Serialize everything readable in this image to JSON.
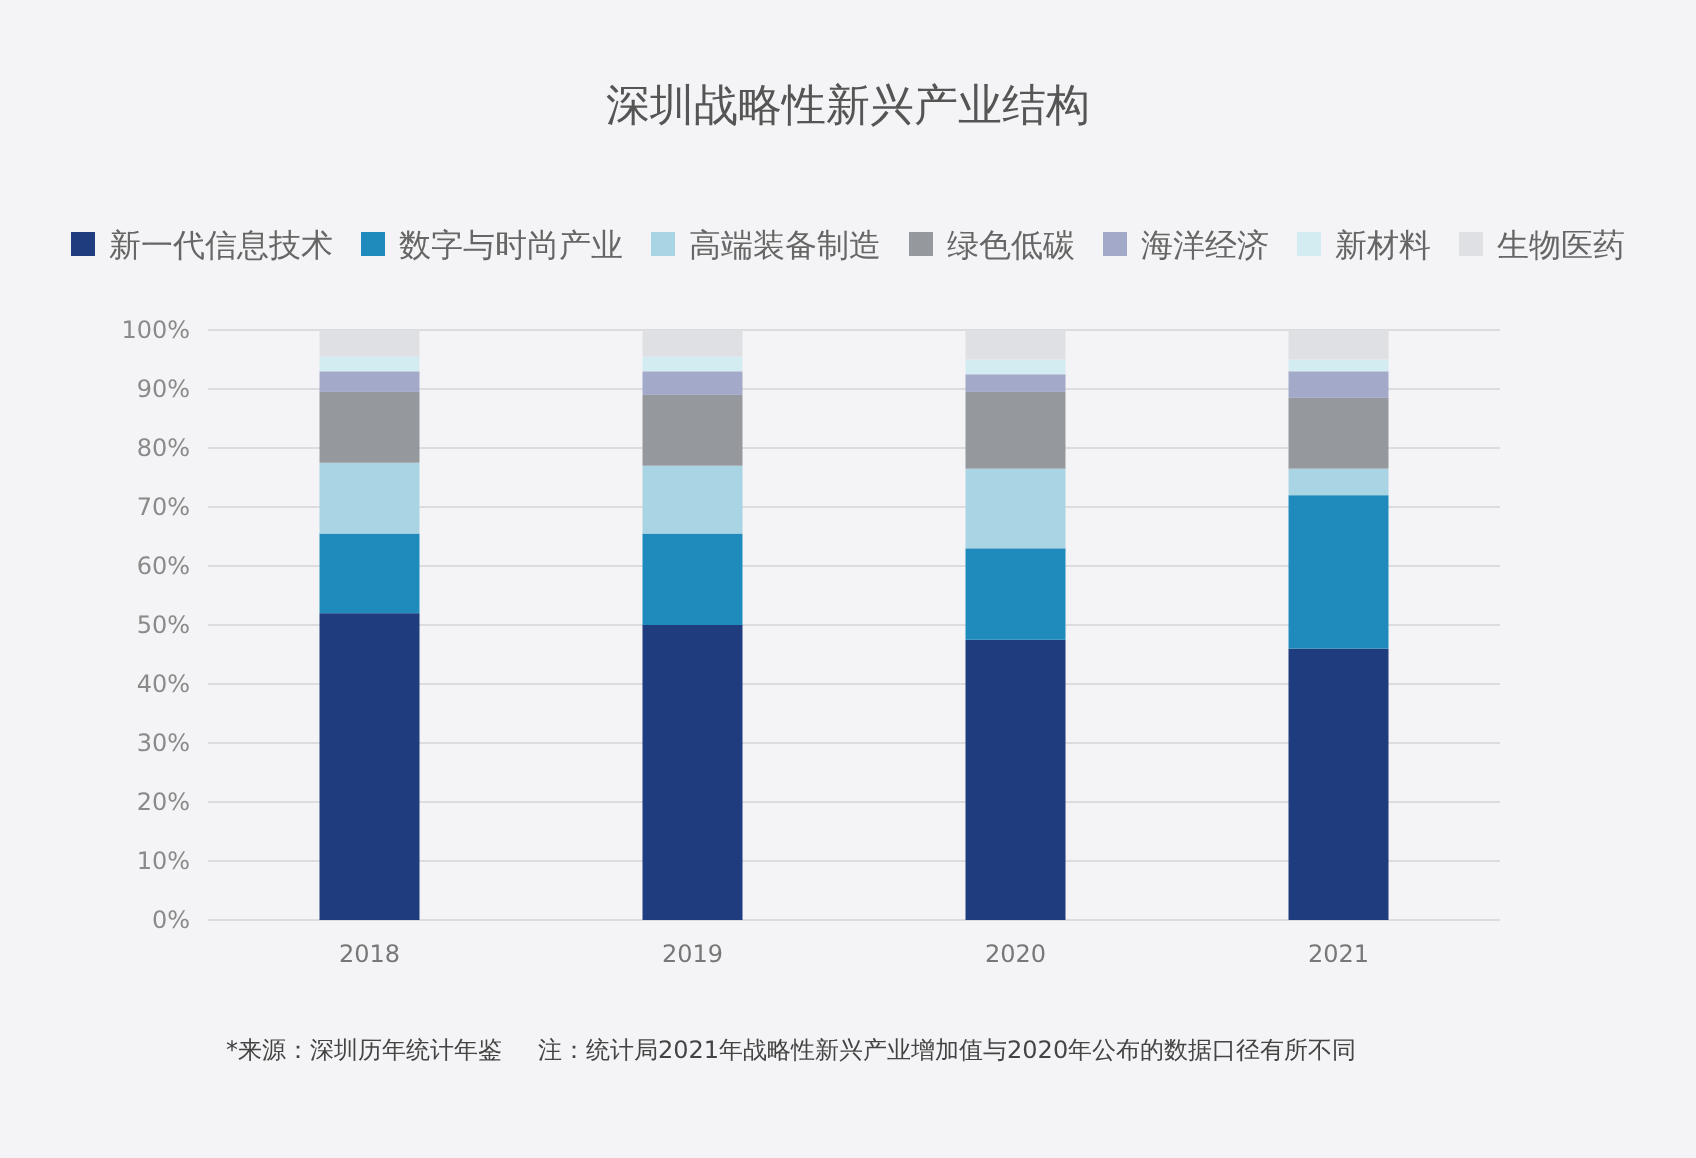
{
  "chart_data": {
    "type": "bar",
    "title": "深圳战略性新兴产业结构",
    "categories": [
      "2018",
      "2019",
      "2020",
      "2021"
    ],
    "stacked": true,
    "series": [
      {
        "name": "新一代信息技术",
        "color": "#1f3c7e",
        "values": [
          52,
          50,
          47.5,
          46
        ]
      },
      {
        "name": "数字与时尚产业",
        "color": "#1f8bbd",
        "values": [
          13.5,
          15.5,
          15.5,
          26
        ]
      },
      {
        "name": "高端装备制造",
        "color": "#a9d4e4",
        "values": [
          12,
          11.5,
          13.5,
          4.5
        ]
      },
      {
        "name": "绿色低碳",
        "color": "#95999d",
        "values": [
          12,
          12,
          13,
          12
        ]
      },
      {
        "name": "海洋经济",
        "color": "#a3a9c9",
        "values": [
          3.5,
          4,
          3,
          4.5
        ]
      },
      {
        "name": "新材料",
        "color": "#d3ecf2",
        "values": [
          2.5,
          2.5,
          2.5,
          2
        ]
      },
      {
        "name": "生物医药",
        "color": "#dfe0e3",
        "values": [
          4.5,
          4.5,
          5,
          5
        ]
      }
    ],
    "ylim": [
      0,
      100
    ],
    "yticks": [
      {
        "value": 0,
        "label": "0%"
      },
      {
        "value": 10,
        "label": "10%"
      },
      {
        "value": 20,
        "label": "20%"
      },
      {
        "value": 30,
        "label": "30%"
      },
      {
        "value": 40,
        "label": "40%"
      },
      {
        "value": 50,
        "label": "50%"
      },
      {
        "value": 60,
        "label": "60%"
      },
      {
        "value": 70,
        "label": "70%"
      },
      {
        "value": 80,
        "label": "80%"
      },
      {
        "value": 90,
        "label": "90%"
      },
      {
        "value": 100,
        "label": "100%"
      }
    ],
    "grid": "y",
    "legend": "top",
    "annotations": [
      "*来源：深圳历年统计年鉴",
      "注：统计局2021年战略性新兴产业增加值与2020年公布的数据口径有所不同"
    ]
  }
}
